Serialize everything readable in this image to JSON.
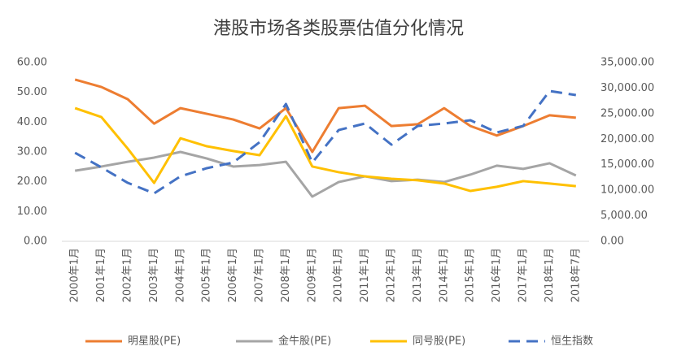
{
  "chart_data": {
    "type": "line",
    "title": "港股市场各类股票估值分化情况",
    "categories": [
      "2000年1月",
      "2001年1月",
      "2002年1月",
      "2003年1月",
      "2004年1月",
      "2005年1月",
      "2006年1月",
      "2007年1月",
      "2008年1月",
      "2009年1月",
      "2010年1月",
      "2011年1月",
      "2012年1月",
      "2013年1月",
      "2014年1月",
      "2015年1月",
      "2016年1月",
      "2017年1月",
      "2018年1月",
      "2018年7月"
    ],
    "series": [
      {
        "name": "明星股(PE)",
        "color": "#ed7d31",
        "values": [
          54.3,
          51.8,
          47.7,
          39.5,
          44.7,
          42.8,
          40.9,
          37.9,
          44.7,
          30.0,
          44.7,
          45.5,
          38.7,
          39.3,
          44.7,
          38.7,
          35.5,
          38.7,
          42.3,
          41.5
        ]
      },
      {
        "name": "金牛股(PE)",
        "color": "#a5a5a5",
        "values": [
          23.7,
          25.1,
          26.7,
          28.1,
          30.0,
          27.8,
          25.1,
          25.6,
          26.7,
          15.0,
          19.9,
          21.8,
          20.2,
          20.7,
          19.9,
          22.4,
          25.4,
          24.3,
          26.2,
          22.1
        ]
      },
      {
        "name": "同号股(PE)",
        "color": "#ffc000",
        "values": [
          44.7,
          41.7,
          31.1,
          19.6,
          34.6,
          31.9,
          30.3,
          28.9,
          42.0,
          25.1,
          23.2,
          21.8,
          21.0,
          20.5,
          19.4,
          16.9,
          18.3,
          20.2,
          19.4,
          18.5
        ]
      },
      {
        "name": "恒生指数",
        "color": "#4472c4",
        "axis": "y2",
        "dashed": true,
        "values": [
          17340,
          14480,
          11450,
          9390,
          12730,
          14320,
          15430,
          19410,
          26890,
          15430,
          21790,
          23070,
          18930,
          22590,
          23070,
          23700,
          21320,
          22590,
          29430,
          28640
        ]
      }
    ],
    "ylim": [
      0,
      60
    ],
    "yticks": [
      {
        "value": 0,
        "label": "0.00"
      },
      {
        "value": 10,
        "label": "10.00"
      },
      {
        "value": 20,
        "label": "20.00"
      },
      {
        "value": 30,
        "label": "30.00"
      },
      {
        "value": 40,
        "label": "40.00"
      },
      {
        "value": 50,
        "label": "50.00"
      },
      {
        "value": 60,
        "label": "60.00"
      }
    ],
    "y2lim": [
      0,
      35000
    ],
    "y2ticks": [
      {
        "value": 0,
        "label": "0.00"
      },
      {
        "value": 5000,
        "label": "5,000.00"
      },
      {
        "value": 10000,
        "label": "10,000.00"
      },
      {
        "value": 15000,
        "label": "15,000.00"
      },
      {
        "value": 20000,
        "label": "20,000.00"
      },
      {
        "value": 25000,
        "label": "25,000.00"
      },
      {
        "value": 30000,
        "label": "30,000.00"
      },
      {
        "value": 35000,
        "label": "35,000.00"
      }
    ],
    "grid": false,
    "legend": "bottom"
  }
}
